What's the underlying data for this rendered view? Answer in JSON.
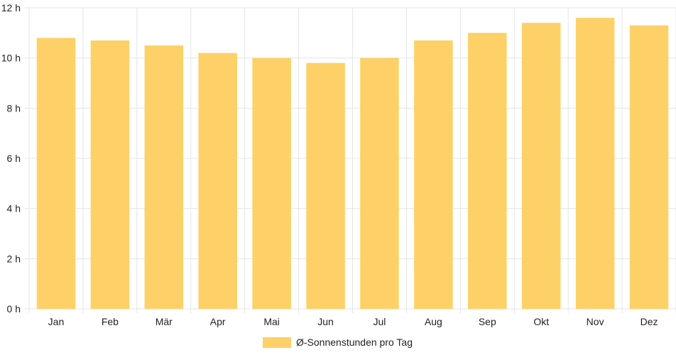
{
  "chart_data": {
    "type": "bar",
    "categories": [
      "Jan",
      "Feb",
      "Mär",
      "Apr",
      "Mai",
      "Jun",
      "Jul",
      "Aug",
      "Sep",
      "Okt",
      "Nov",
      "Dez"
    ],
    "series": [
      {
        "name": "Ø-Sonnenstunden pro Tag",
        "values": [
          10.8,
          10.7,
          10.5,
          10.2,
          10.0,
          9.8,
          10.0,
          10.7,
          11.0,
          11.4,
          11.6,
          11.3
        ]
      }
    ],
    "yticks": [
      "0 h",
      "2 h",
      "4 h",
      "6 h",
      "8 h",
      "10 h",
      "12 h"
    ],
    "ylim": [
      0,
      12
    ],
    "grid": true,
    "legend_position": "bottom-center",
    "bar_color": "#fdd168"
  }
}
